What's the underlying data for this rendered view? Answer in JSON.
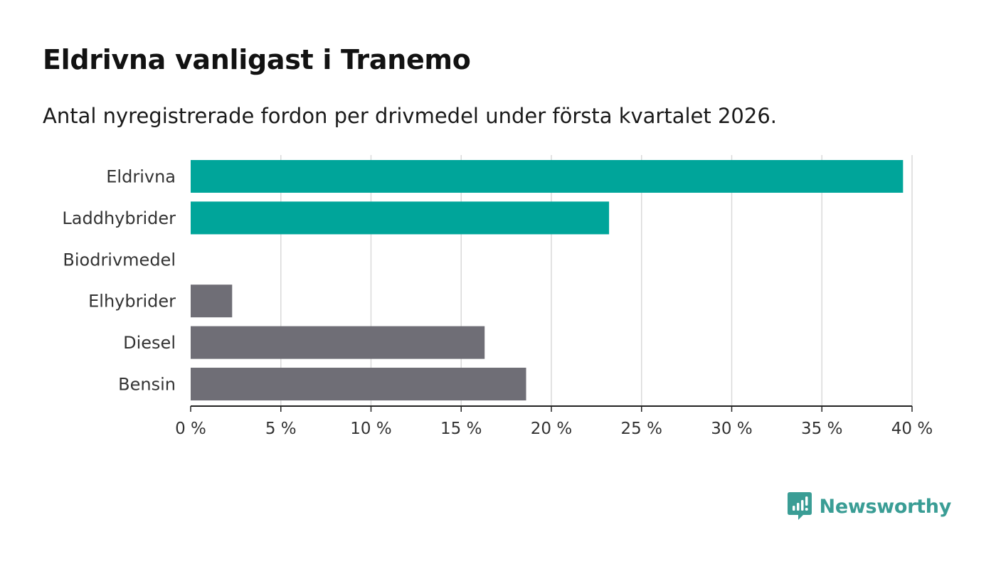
{
  "colors": {
    "highlight": "#00a59a",
    "other": "#6f6e76",
    "grid": "#d9d9d9",
    "axis": "#222222",
    "brand": "#3a9d95"
  },
  "brand": {
    "name": "Newsworthy",
    "icon": "chart-speech-bubble-icon"
  },
  "chart_data": {
    "type": "bar",
    "orientation": "horizontal",
    "title": "Eldrivna vanligast i Tranemo",
    "subtitle": "Antal nyregistrerade fordon per drivmedel under första kvartalet 2026.",
    "xlabel": "",
    "ylabel": "",
    "xlim": [
      0,
      40
    ],
    "grid": true,
    "categories": [
      "Eldrivna",
      "Laddhybrider",
      "Biodrivmedel",
      "Elhybrider",
      "Diesel",
      "Bensin"
    ],
    "values": [
      39.5,
      23.2,
      0,
      2.3,
      16.3,
      18.6
    ],
    "highlighted": [
      true,
      true,
      false,
      false,
      false,
      false
    ],
    "ticks": [
      0,
      5,
      10,
      15,
      20,
      25,
      30,
      35,
      40
    ],
    "tick_labels": [
      "0 %",
      "5 %",
      "10 %",
      "15 %",
      "20 %",
      "25 %",
      "30 %",
      "35 %",
      "40 %"
    ]
  }
}
